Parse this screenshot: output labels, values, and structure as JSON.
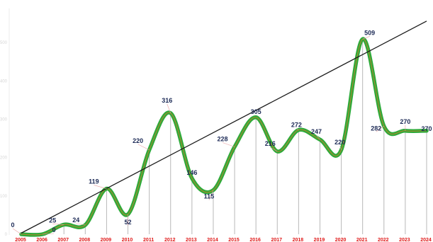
{
  "chart_data": {
    "type": "line",
    "title": "",
    "xlabel": "",
    "ylabel": "",
    "categories": [
      "2005",
      "2006",
      "2007",
      "2008",
      "2009",
      "2010",
      "2011",
      "2012",
      "2013",
      "2014",
      "2015",
      "2016",
      "2017",
      "2018",
      "2019",
      "2020",
      "2021",
      "2022",
      "2023",
      "2024"
    ],
    "series": [
      {
        "values": [
          0,
          0,
          25,
          24,
          119,
          52,
          220,
          316,
          146,
          115,
          228,
          305,
          216,
          272,
          247,
          220,
          509,
          282,
          270,
          270
        ],
        "labels": [
          "0",
          "0",
          "25",
          "24",
          "119",
          "52",
          "220",
          "316",
          "146",
          "115",
          "228",
          "305",
          "216",
          "272",
          "247",
          "220",
          "509",
          "282",
          "270",
          "270"
        ],
        "color": "#2eaa3a",
        "inner_color": "#e07a2a"
      }
    ],
    "trendline": {
      "from": 3,
      "to": 556,
      "color": "#1a1a1a"
    },
    "yticks": [
      "0",
      "100",
      "200",
      "300",
      "400",
      "500"
    ],
    "ylim": [
      0,
      600
    ],
    "grid": false,
    "drop_lines": true,
    "drop_line_color": "#b8b8b8",
    "legend": "none"
  }
}
